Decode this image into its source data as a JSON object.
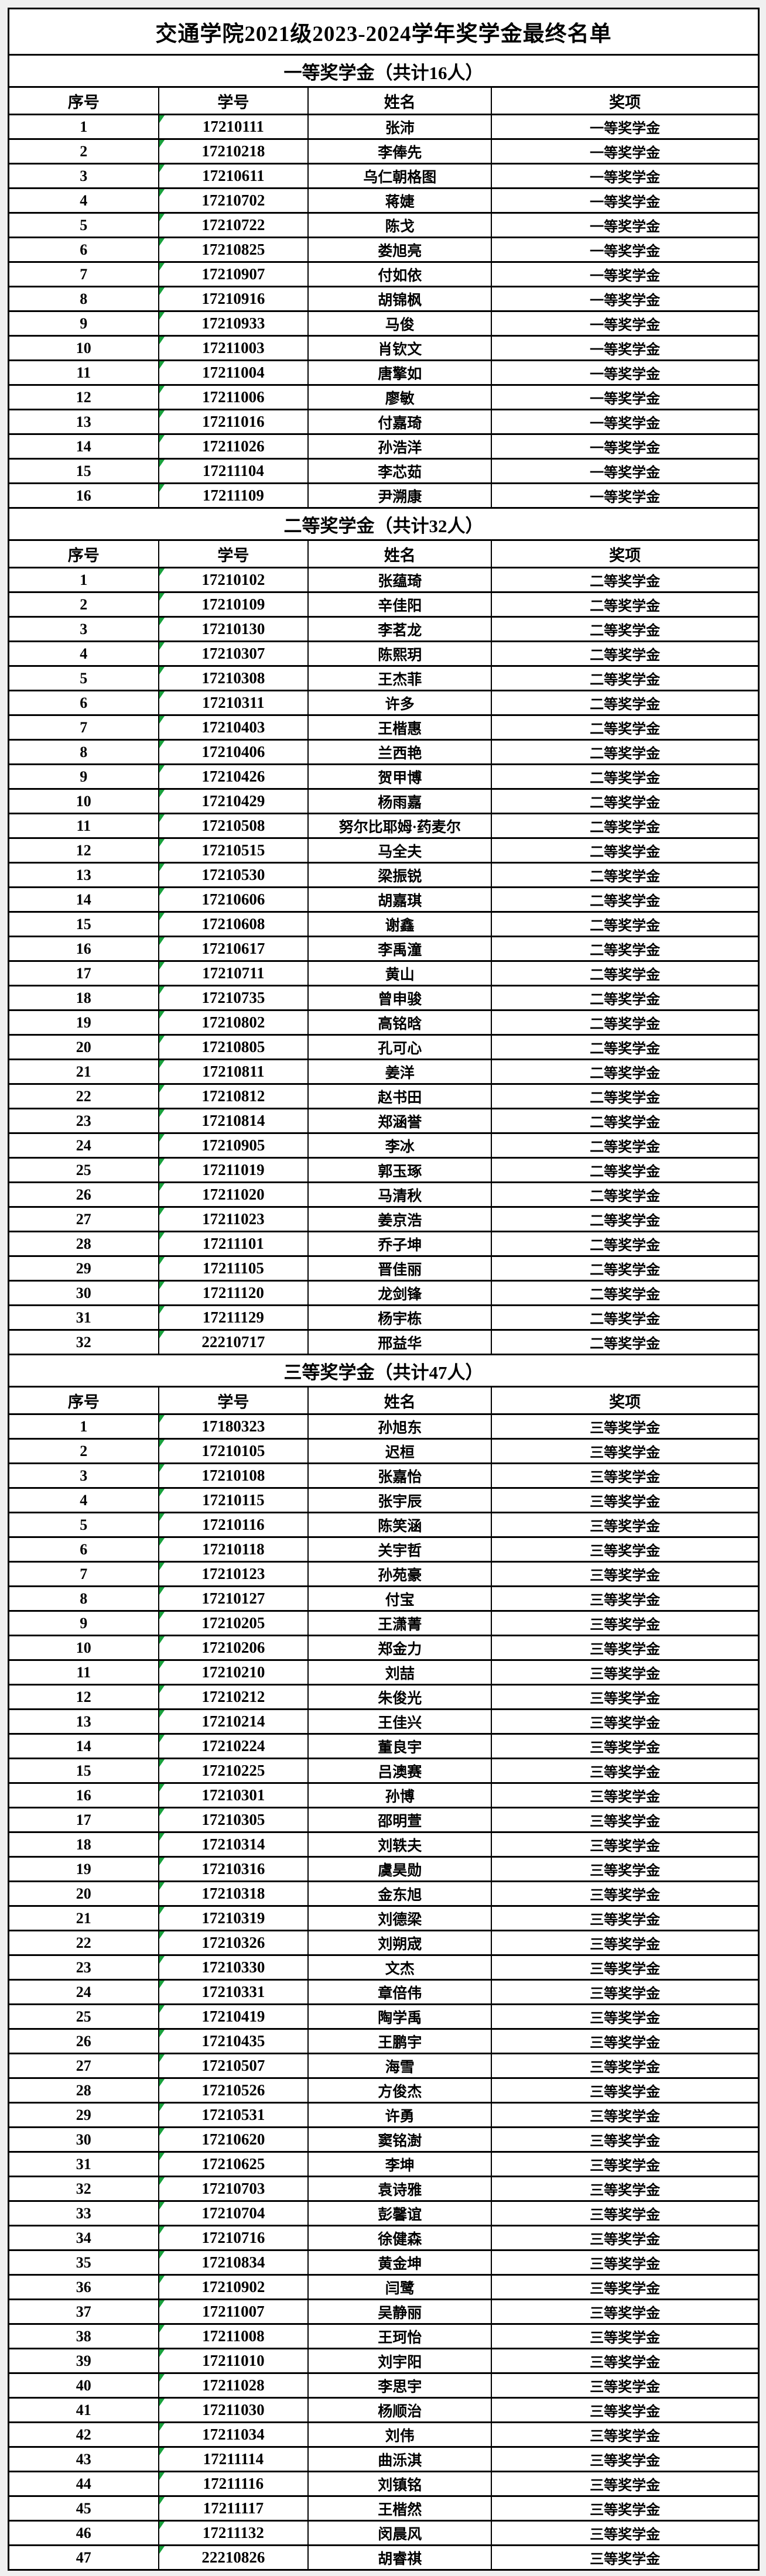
{
  "page": {
    "title": "交通学院2021级2023-2024学年奖学金最终名单"
  },
  "columns": [
    "序号",
    "学号",
    "姓名",
    "奖项"
  ],
  "colors": {
    "border": "#000000",
    "table_background": "#ffffff",
    "page_background": "#f0f0f0",
    "id_flag_green": "#18a03c"
  },
  "sections": [
    {
      "header": "一等奖学金（共计16人）",
      "rows": [
        [
          "1",
          "17210111",
          "张沛",
          "一等奖学金"
        ],
        [
          "2",
          "17210218",
          "李俸先",
          "一等奖学金"
        ],
        [
          "3",
          "17210611",
          "乌仁朝格图",
          "一等奖学金"
        ],
        [
          "4",
          "17210702",
          "蒋婕",
          "一等奖学金"
        ],
        [
          "5",
          "17210722",
          "陈戈",
          "一等奖学金"
        ],
        [
          "6",
          "17210825",
          "娄旭亮",
          "一等奖学金"
        ],
        [
          "7",
          "17210907",
          "付如依",
          "一等奖学金"
        ],
        [
          "8",
          "17210916",
          "胡锦枫",
          "一等奖学金"
        ],
        [
          "9",
          "17210933",
          "马俊",
          "一等奖学金"
        ],
        [
          "10",
          "17211003",
          "肖钦文",
          "一等奖学金"
        ],
        [
          "11",
          "17211004",
          "唐擎如",
          "一等奖学金"
        ],
        [
          "12",
          "17211006",
          "廖敏",
          "一等奖学金"
        ],
        [
          "13",
          "17211016",
          "付嘉琦",
          "一等奖学金"
        ],
        [
          "14",
          "17211026",
          "孙浩洋",
          "一等奖学金"
        ],
        [
          "15",
          "17211104",
          "李芯茹",
          "一等奖学金"
        ],
        [
          "16",
          "17211109",
          "尹溯康",
          "一等奖学金"
        ]
      ]
    },
    {
      "header": "二等奖学金（共计32人）",
      "rows": [
        [
          "1",
          "17210102",
          "张蕴琦",
          "二等奖学金"
        ],
        [
          "2",
          "17210109",
          "辛佳阳",
          "二等奖学金"
        ],
        [
          "3",
          "17210130",
          "李茗龙",
          "二等奖学金"
        ],
        [
          "4",
          "17210307",
          "陈熙玥",
          "二等奖学金"
        ],
        [
          "5",
          "17210308",
          "王杰菲",
          "二等奖学金"
        ],
        [
          "6",
          "17210311",
          "许多",
          "二等奖学金"
        ],
        [
          "7",
          "17210403",
          "王楷惠",
          "二等奖学金"
        ],
        [
          "8",
          "17210406",
          "兰西艳",
          "二等奖学金"
        ],
        [
          "9",
          "17210426",
          "贺甲博",
          "二等奖学金"
        ],
        [
          "10",
          "17210429",
          "杨雨嘉",
          "二等奖学金"
        ],
        [
          "11",
          "17210508",
          "努尔比耶姆·药麦尔",
          "二等奖学金"
        ],
        [
          "12",
          "17210515",
          "马全夫",
          "二等奖学金"
        ],
        [
          "13",
          "17210530",
          "梁振锐",
          "二等奖学金"
        ],
        [
          "14",
          "17210606",
          "胡嘉琪",
          "二等奖学金"
        ],
        [
          "15",
          "17210608",
          "谢鑫",
          "二等奖学金"
        ],
        [
          "16",
          "17210617",
          "李禹潼",
          "二等奖学金"
        ],
        [
          "17",
          "17210711",
          "黄山",
          "二等奖学金"
        ],
        [
          "18",
          "17210735",
          "曾申骏",
          "二等奖学金"
        ],
        [
          "19",
          "17210802",
          "高铭晗",
          "二等奖学金"
        ],
        [
          "20",
          "17210805",
          "孔可心",
          "二等奖学金"
        ],
        [
          "21",
          "17210811",
          "姜洋",
          "二等奖学金"
        ],
        [
          "22",
          "17210812",
          "赵书田",
          "二等奖学金"
        ],
        [
          "23",
          "17210814",
          "郑涵誉",
          "二等奖学金"
        ],
        [
          "24",
          "17210905",
          "李冰",
          "二等奖学金"
        ],
        [
          "25",
          "17211019",
          "郭玉琢",
          "二等奖学金"
        ],
        [
          "26",
          "17211020",
          "马清秋",
          "二等奖学金"
        ],
        [
          "27",
          "17211023",
          "姜京浩",
          "二等奖学金"
        ],
        [
          "28",
          "17211101",
          "乔子坤",
          "二等奖学金"
        ],
        [
          "29",
          "17211105",
          "晋佳丽",
          "二等奖学金"
        ],
        [
          "30",
          "17211120",
          "龙剑锋",
          "二等奖学金"
        ],
        [
          "31",
          "17211129",
          "杨宇栋",
          "二等奖学金"
        ],
        [
          "32",
          "22210717",
          "邢益华",
          "二等奖学金"
        ]
      ]
    },
    {
      "header": "三等奖学金（共计47人）",
      "rows": [
        [
          "1",
          "17180323",
          "孙旭东",
          "三等奖学金"
        ],
        [
          "2",
          "17210105",
          "迟桓",
          "三等奖学金"
        ],
        [
          "3",
          "17210108",
          "张嘉怡",
          "三等奖学金"
        ],
        [
          "4",
          "17210115",
          "张宇辰",
          "三等奖学金"
        ],
        [
          "5",
          "17210116",
          "陈笑涵",
          "三等奖学金"
        ],
        [
          "6",
          "17210118",
          "关宇哲",
          "三等奖学金"
        ],
        [
          "7",
          "17210123",
          "孙苑豪",
          "三等奖学金"
        ],
        [
          "8",
          "17210127",
          "付宝",
          "三等奖学金"
        ],
        [
          "9",
          "17210205",
          "王潇菁",
          "三等奖学金"
        ],
        [
          "10",
          "17210206",
          "郑金力",
          "三等奖学金"
        ],
        [
          "11",
          "17210210",
          "刘喆",
          "三等奖学金"
        ],
        [
          "12",
          "17210212",
          "朱俊光",
          "三等奖学金"
        ],
        [
          "13",
          "17210214",
          "王佳兴",
          "三等奖学金"
        ],
        [
          "14",
          "17210224",
          "董良宇",
          "三等奖学金"
        ],
        [
          "15",
          "17210225",
          "吕澳赛",
          "三等奖学金"
        ],
        [
          "16",
          "17210301",
          "孙博",
          "三等奖学金"
        ],
        [
          "17",
          "17210305",
          "邵明萱",
          "三等奖学金"
        ],
        [
          "18",
          "17210314",
          "刘轶夫",
          "三等奖学金"
        ],
        [
          "19",
          "17210316",
          "虞昊勋",
          "三等奖学金"
        ],
        [
          "20",
          "17210318",
          "金东旭",
          "三等奖学金"
        ],
        [
          "21",
          "17210319",
          "刘德梁",
          "三等奖学金"
        ],
        [
          "22",
          "17210326",
          "刘朔宬",
          "三等奖学金"
        ],
        [
          "23",
          "17210330",
          "文杰",
          "三等奖学金"
        ],
        [
          "24",
          "17210331",
          "章倍伟",
          "三等奖学金"
        ],
        [
          "25",
          "17210419",
          "陶学禹",
          "三等奖学金"
        ],
        [
          "26",
          "17210435",
          "王鹏宇",
          "三等奖学金"
        ],
        [
          "27",
          "17210507",
          "海雪",
          "三等奖学金"
        ],
        [
          "28",
          "17210526",
          "方俊杰",
          "三等奖学金"
        ],
        [
          "29",
          "17210531",
          "许勇",
          "三等奖学金"
        ],
        [
          "30",
          "17210620",
          "窦铭澍",
          "三等奖学金"
        ],
        [
          "31",
          "17210625",
          "李坤",
          "三等奖学金"
        ],
        [
          "32",
          "17210703",
          "袁诗雅",
          "三等奖学金"
        ],
        [
          "33",
          "17210704",
          "彭馨谊",
          "三等奖学金"
        ],
        [
          "34",
          "17210716",
          "徐健森",
          "三等奖学金"
        ],
        [
          "35",
          "17210834",
          "黄金坤",
          "三等奖学金"
        ],
        [
          "36",
          "17210902",
          "闫鹭",
          "三等奖学金"
        ],
        [
          "37",
          "17211007",
          "吴静丽",
          "三等奖学金"
        ],
        [
          "38",
          "17211008",
          "王珂怡",
          "三等奖学金"
        ],
        [
          "39",
          "17211010",
          "刘宇阳",
          "三等奖学金"
        ],
        [
          "40",
          "17211028",
          "李思宇",
          "三等奖学金"
        ],
        [
          "41",
          "17211030",
          "杨顺治",
          "三等奖学金"
        ],
        [
          "42",
          "17211034",
          "刘伟",
          "三等奖学金"
        ],
        [
          "43",
          "17211114",
          "曲泺淇",
          "三等奖学金"
        ],
        [
          "44",
          "17211116",
          "刘镇铭",
          "三等奖学金"
        ],
        [
          "45",
          "17211117",
          "王楷然",
          "三等奖学金"
        ],
        [
          "46",
          "17211132",
          "闵晨风",
          "三等奖学金"
        ],
        [
          "47",
          "22210826",
          "胡睿祺",
          "三等奖学金"
        ]
      ]
    }
  ]
}
